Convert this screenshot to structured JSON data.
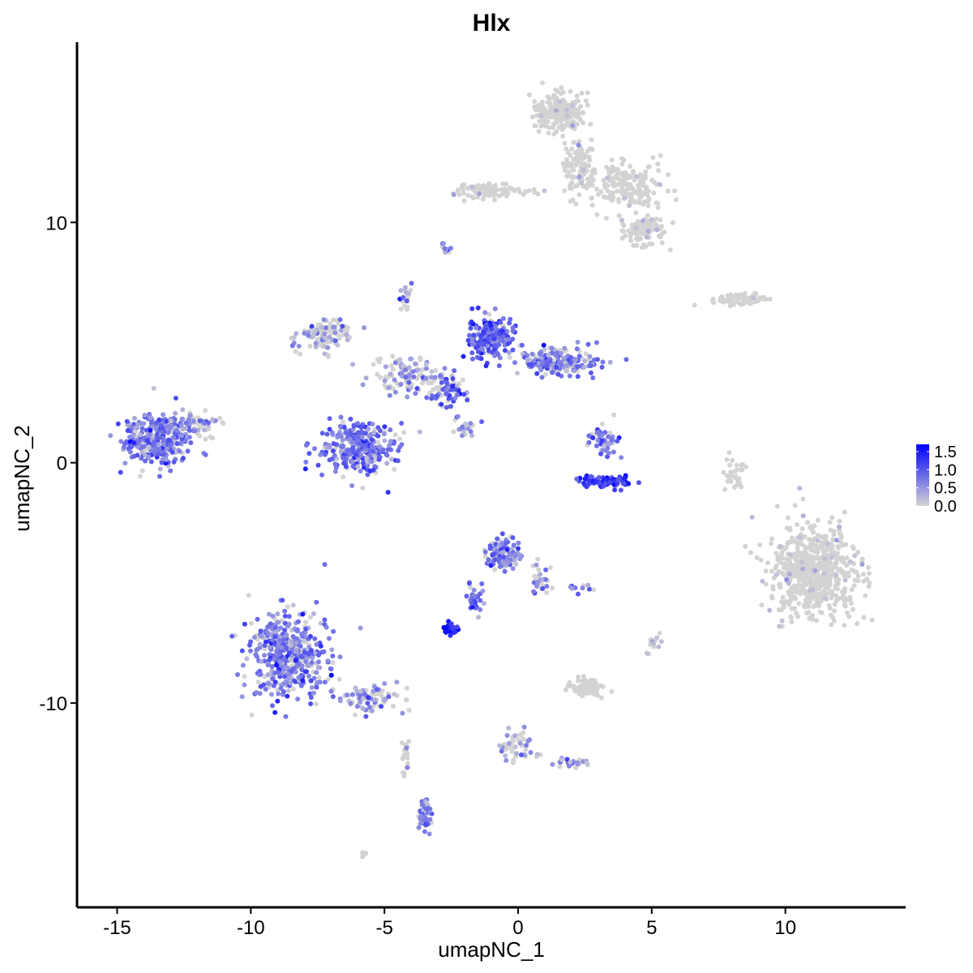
{
  "chart_data": {
    "type": "scatter",
    "title": "Hlx",
    "xlabel": "umapNC_1",
    "ylabel": "umapNC_2",
    "xlim": [
      -16.5,
      14.5
    ],
    "ylim": [
      -18.5,
      17.5
    ],
    "xticks": [
      -15,
      -10,
      -5,
      0,
      5,
      10
    ],
    "yticks": [
      -10,
      0,
      10
    ],
    "x_tick_labels": [
      "-15",
      "-10",
      "-5",
      "0",
      "5",
      "10"
    ],
    "y_tick_labels": [
      "-10",
      "0",
      "10"
    ],
    "grid": false,
    "legend": {
      "position": "right",
      "type": "colorbar",
      "min": 0.0,
      "max": 1.7,
      "breaks": [
        1.5,
        1.0,
        0.5,
        0.0
      ],
      "break_labels": [
        "1.5",
        "1.0",
        "0.5",
        "0.0"
      ],
      "low_color": "#d3d3d3",
      "high_color": "#0000ff"
    },
    "color_scale": {
      "low": "#d3d3d3",
      "high": "#0000ff"
    },
    "clusters": [
      {
        "center": [
          -13.5,
          1.0
        ],
        "spread": [
          1.1,
          1.0
        ],
        "n": 320,
        "expr": 0.72,
        "frac": 0.85
      },
      {
        "center": [
          -12.0,
          1.6
        ],
        "spread": [
          0.9,
          0.5
        ],
        "n": 60,
        "expr": 0.6,
        "frac": 0.6
      },
      {
        "center": [
          -6.0,
          0.6
        ],
        "spread": [
          1.2,
          1.0
        ],
        "n": 320,
        "expr": 0.8,
        "frac": 0.8
      },
      {
        "center": [
          -7.2,
          5.3
        ],
        "spread": [
          0.9,
          0.6
        ],
        "n": 110,
        "expr": 0.45,
        "frac": 0.4
      },
      {
        "center": [
          -4.2,
          3.6
        ],
        "spread": [
          1.2,
          0.7
        ],
        "n": 110,
        "expr": 0.5,
        "frac": 0.45
      },
      {
        "center": [
          -2.6,
          3.0
        ],
        "spread": [
          0.6,
          0.6
        ],
        "n": 70,
        "expr": 0.9,
        "frac": 0.7
      },
      {
        "center": [
          -1.0,
          5.2
        ],
        "spread": [
          0.8,
          0.8
        ],
        "n": 210,
        "expr": 0.95,
        "frac": 0.9
      },
      {
        "center": [
          1.5,
          4.2
        ],
        "spread": [
          1.3,
          0.5
        ],
        "n": 200,
        "expr": 0.75,
        "frac": 0.75
      },
      {
        "center": [
          -4.2,
          7.0
        ],
        "spread": [
          0.2,
          0.6
        ],
        "n": 20,
        "expr": 0.4,
        "frac": 0.4
      },
      {
        "center": [
          -2.0,
          1.4
        ],
        "spread": [
          0.6,
          0.4
        ],
        "n": 20,
        "expr": 0.5,
        "frac": 0.6
      },
      {
        "center": [
          3.2,
          0.9
        ],
        "spread": [
          0.5,
          0.6
        ],
        "n": 50,
        "expr": 0.7,
        "frac": 0.7
      },
      {
        "center": [
          3.3,
          -0.8
        ],
        "spread": [
          0.9,
          0.2
        ],
        "n": 90,
        "expr": 1.25,
        "frac": 0.95
      },
      {
        "center": [
          -8.6,
          -8.0
        ],
        "spread": [
          1.3,
          1.6
        ],
        "n": 460,
        "expr": 0.72,
        "frac": 0.78
      },
      {
        "center": [
          -5.6,
          -9.8
        ],
        "spread": [
          1.0,
          0.5
        ],
        "n": 80,
        "expr": 0.55,
        "frac": 0.5
      },
      {
        "center": [
          -4.2,
          -12.2
        ],
        "spread": [
          0.2,
          0.9
        ],
        "n": 20,
        "expr": 0.2,
        "frac": 0.1
      },
      {
        "center": [
          -3.5,
          -14.6
        ],
        "spread": [
          0.2,
          0.6
        ],
        "n": 50,
        "expr": 0.7,
        "frac": 0.85
      },
      {
        "center": [
          -0.5,
          -3.8
        ],
        "spread": [
          0.6,
          0.6
        ],
        "n": 110,
        "expr": 0.75,
        "frac": 0.75
      },
      {
        "center": [
          0.8,
          -4.9
        ],
        "spread": [
          0.3,
          0.7
        ],
        "n": 30,
        "expr": 0.6,
        "frac": 0.6
      },
      {
        "center": [
          -1.6,
          -5.6
        ],
        "spread": [
          0.3,
          0.6
        ],
        "n": 30,
        "expr": 0.8,
        "frac": 0.8
      },
      {
        "center": [
          -2.5,
          -6.9
        ],
        "spread": [
          0.3,
          0.2
        ],
        "n": 40,
        "expr": 1.5,
        "frac": 1.0
      },
      {
        "center": [
          2.4,
          -5.2
        ],
        "spread": [
          0.5,
          0.1
        ],
        "n": 10,
        "expr": 0.5,
        "frac": 0.6
      },
      {
        "center": [
          2.5,
          -9.3
        ],
        "spread": [
          0.6,
          0.3
        ],
        "n": 80,
        "expr": 0.05,
        "frac": 0.02
      },
      {
        "center": [
          0.0,
          -11.8
        ],
        "spread": [
          0.7,
          0.6
        ],
        "n": 50,
        "expr": 0.45,
        "frac": 0.4
      },
      {
        "center": [
          1.9,
          -12.5
        ],
        "spread": [
          0.6,
          0.15
        ],
        "n": 30,
        "expr": 0.6,
        "frac": 0.6
      },
      {
        "center": [
          1.5,
          14.6
        ],
        "spread": [
          0.8,
          0.7
        ],
        "n": 220,
        "expr": 0.05,
        "frac": 0.03
      },
      {
        "center": [
          2.3,
          12.3
        ],
        "spread": [
          0.6,
          1.2
        ],
        "n": 100,
        "expr": 0.05,
        "frac": 0.03
      },
      {
        "center": [
          4.0,
          11.5
        ],
        "spread": [
          1.2,
          0.8
        ],
        "n": 180,
        "expr": 0.05,
        "frac": 0.03
      },
      {
        "center": [
          4.7,
          9.7
        ],
        "spread": [
          0.8,
          0.6
        ],
        "n": 110,
        "expr": 0.05,
        "frac": 0.03
      },
      {
        "center": [
          -1.0,
          11.3
        ],
        "spread": [
          1.5,
          0.3
        ],
        "n": 90,
        "expr": 0.05,
        "frac": 0.04
      },
      {
        "center": [
          8.3,
          6.8
        ],
        "spread": [
          1.0,
          0.25
        ],
        "n": 70,
        "expr": 0.05,
        "frac": 0.05
      },
      {
        "center": [
          11.0,
          -4.6
        ],
        "spread": [
          1.5,
          1.7
        ],
        "n": 600,
        "expr": 0.08,
        "frac": 0.05
      },
      {
        "center": [
          8.1,
          -0.5
        ],
        "spread": [
          0.3,
          0.6
        ],
        "n": 30,
        "expr": 0.0,
        "frac": 0.0
      },
      {
        "center": [
          -2.7,
          9.0
        ],
        "spread": [
          0.15,
          0.2
        ],
        "n": 10,
        "expr": 0.6,
        "frac": 0.5
      },
      {
        "center": [
          5.1,
          -7.5
        ],
        "spread": [
          0.3,
          0.3
        ],
        "n": 15,
        "expr": 0.3,
        "frac": 0.3
      },
      {
        "center": [
          -5.8,
          -16.3
        ],
        "spread": [
          0.2,
          0.1
        ],
        "n": 8,
        "expr": 0.0,
        "frac": 0.0
      }
    ]
  }
}
